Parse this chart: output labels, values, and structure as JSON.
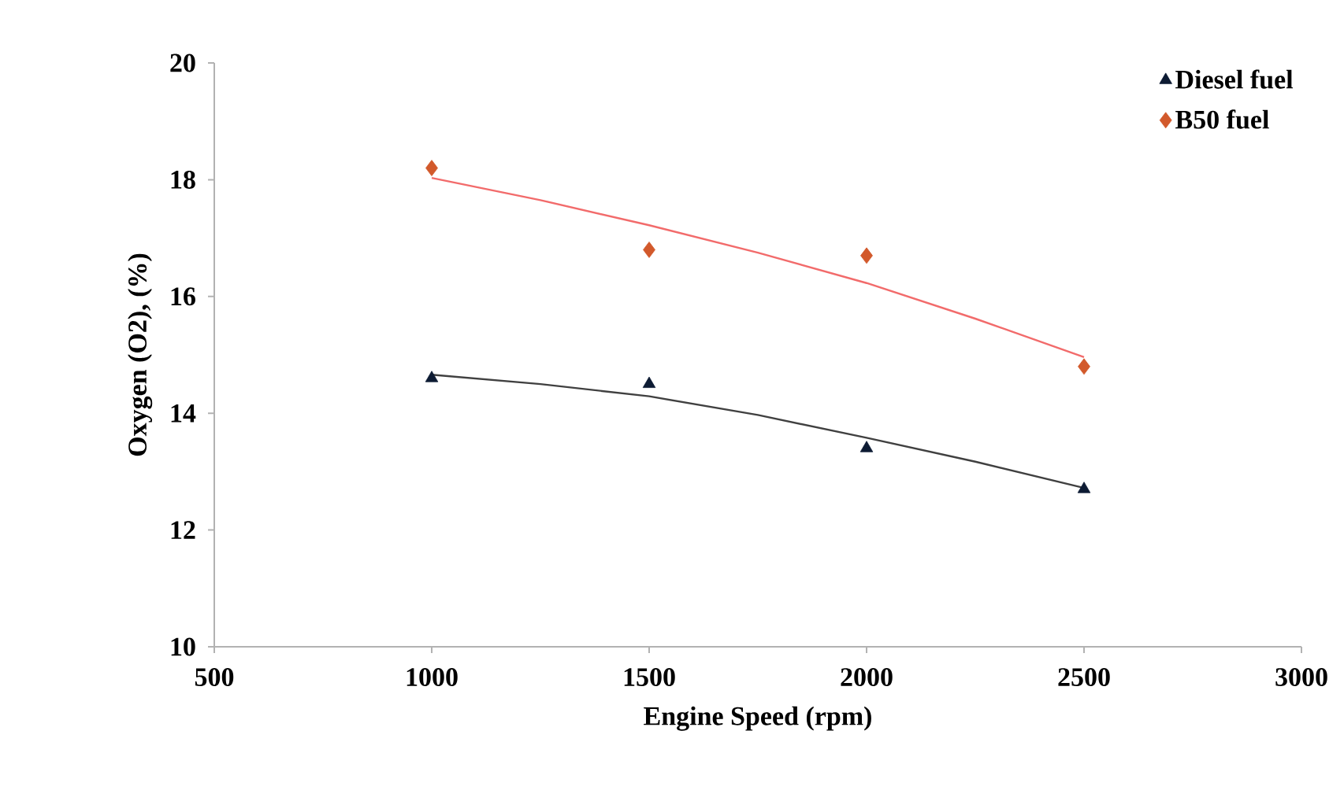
{
  "chart_data": {
    "type": "scatter",
    "xlabel": "Engine Speed (rpm)",
    "ylabel": "Oxygen (O2), (%)",
    "xlim": [
      500,
      3000
    ],
    "xticks": [
      500,
      1000,
      1500,
      2000,
      2500,
      3000
    ],
    "ylim": [
      10,
      20
    ],
    "yticks": [
      10,
      12,
      14,
      16,
      18,
      20
    ],
    "grid": false,
    "legend": "top right",
    "series": [
      {
        "name": "Diesel fuel",
        "marker": "triangle",
        "color": "#0d1b33",
        "x": [
          1000,
          1500,
          2000,
          2500
        ],
        "values": [
          14.6,
          14.5,
          13.4,
          12.7
        ]
      },
      {
        "name": "B50 fuel",
        "marker": "diamond",
        "color": "#d2592b",
        "x": [
          1000,
          1500,
          2000,
          2500
        ],
        "values": [
          18.2,
          16.8,
          16.7,
          14.8
        ]
      },
      {
        "type": "line",
        "marker": "none",
        "color": "#404040",
        "x": [
          1000,
          1250,
          1500,
          1750,
          2000,
          2250,
          2500
        ],
        "values": [
          14.66,
          14.5,
          14.29,
          13.97,
          13.58,
          13.17,
          12.72
        ]
      },
      {
        "type": "line",
        "marker": "none",
        "color": "#f26b6b",
        "x": [
          1000,
          1250,
          1500,
          1750,
          2000,
          2250,
          2500
        ],
        "values": [
          18.03,
          17.65,
          17.22,
          16.75,
          16.23,
          15.62,
          14.96
        ]
      }
    ]
  }
}
